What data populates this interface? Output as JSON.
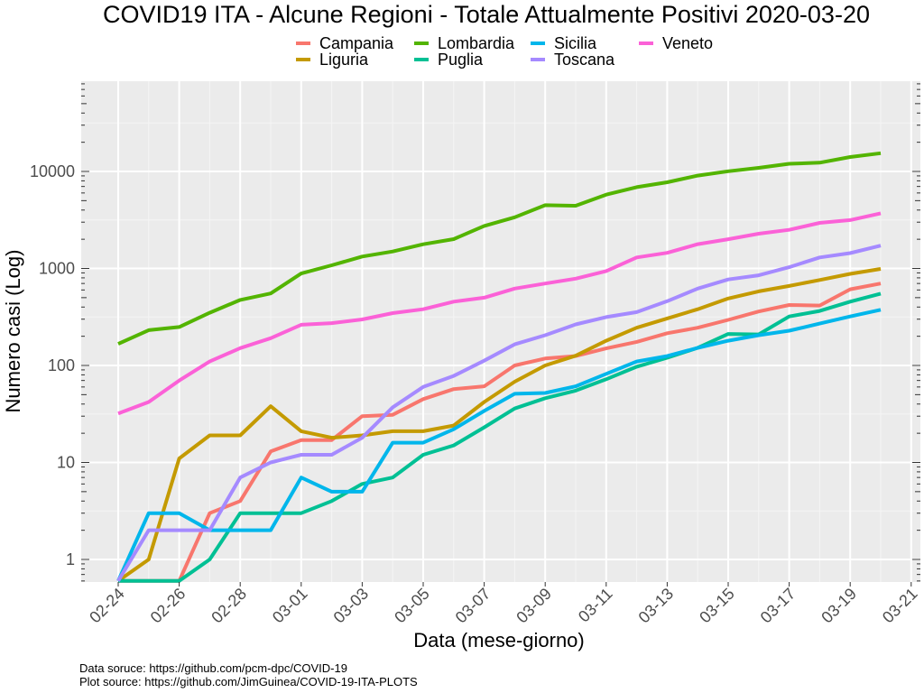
{
  "chart_data": {
    "type": "line",
    "title": "COVID19 ITA - Alcune Regioni - Totale Attualmente Positivi 2020-03-20",
    "xlabel": "Data (mese-giorno)",
    "ylabel": "Numero casi (Log)",
    "y_scale": "log",
    "ylim": [
      0.6,
      90000
    ],
    "y_ticks": [
      1,
      10,
      100,
      1000,
      10000
    ],
    "y_tick_labels": [
      "1",
      "10",
      "100",
      "1000",
      "10000"
    ],
    "x_tick_labels": [
      "02-24",
      "02-26",
      "02-28",
      "03-01",
      "03-03",
      "03-05",
      "03-07",
      "03-09",
      "03-11",
      "03-13",
      "03-15",
      "03-17",
      "03-19",
      "03-21"
    ],
    "x": [
      "02-24",
      "02-25",
      "02-26",
      "02-27",
      "02-28",
      "02-29",
      "03-01",
      "03-02",
      "03-03",
      "03-04",
      "03-05",
      "03-06",
      "03-07",
      "03-08",
      "03-09",
      "03-10",
      "03-11",
      "03-12",
      "03-13",
      "03-14",
      "03-15",
      "03-16",
      "03-17",
      "03-18",
      "03-19",
      "03-20"
    ],
    "grid": true,
    "legend_position": "top",
    "series": [
      {
        "name": "Campania",
        "color": "#F8766D",
        "values": [
          0.6,
          0.6,
          0.6,
          3,
          4,
          13,
          17,
          17,
          30,
          31,
          45,
          57,
          61,
          100,
          118,
          125,
          150,
          175,
          215,
          245,
          295,
          360,
          420,
          415,
          610,
          700
        ]
      },
      {
        "name": "Liguria",
        "color": "#C49A00",
        "values": [
          0.6,
          1,
          11,
          19,
          19,
          38,
          21,
          18,
          19,
          21,
          21,
          24,
          42,
          68,
          100,
          126,
          180,
          245,
          305,
          380,
          490,
          580,
          660,
          760,
          880,
          990
        ]
      },
      {
        "name": "Lombardia",
        "color": "#53B400",
        "values": [
          167,
          231,
          249,
          349,
          474,
          552,
          887,
          1077,
          1326,
          1497,
          1777,
          2008,
          2742,
          3372,
          4490,
          4427,
          5763,
          6896,
          7732,
          9059,
          10043,
          10900,
          12000,
          12300,
          14100,
          15420
        ]
      },
      {
        "name": "Puglia",
        "color": "#00C094",
        "values": [
          0.6,
          0.6,
          0.6,
          1,
          3,
          3,
          3,
          4,
          6,
          7,
          12,
          15,
          23,
          36,
          46,
          55,
          72,
          97,
          120,
          152,
          211,
          209,
          320,
          365,
          455,
          550
        ]
      },
      {
        "name": "Sicilia",
        "color": "#00B6EB",
        "values": [
          0.6,
          3,
          3,
          2,
          2,
          2,
          7,
          5,
          5,
          16,
          16,
          22,
          34,
          51,
          52,
          61,
          82,
          110,
          125,
          152,
          180,
          205,
          228,
          270,
          320,
          375
        ]
      },
      {
        "name": "Toscana",
        "color": "#A58AFF",
        "values": [
          0.6,
          2,
          2,
          2,
          7,
          10,
          12,
          12,
          18,
          37,
          60,
          78,
          112,
          165,
          205,
          265,
          315,
          355,
          460,
          620,
          770,
          850,
          1030,
          1300,
          1440,
          1720
        ]
      },
      {
        "name": "Veneto",
        "color": "#FB61D7",
        "values": [
          32,
          42,
          70,
          110,
          151,
          191,
          263,
          273,
          298,
          346,
          380,
          455,
          500,
          620,
          700,
          785,
          940,
          1300,
          1450,
          1780,
          2000,
          2280,
          2500,
          2950,
          3150,
          3700
        ]
      }
    ]
  },
  "caption": {
    "data_source": "Data soruce: https://github.com/pcm-dpc/COVID-19",
    "plot_source": "Plot source: https://github.com/JimGuinea/COVID-19-ITA-PLOTS"
  }
}
